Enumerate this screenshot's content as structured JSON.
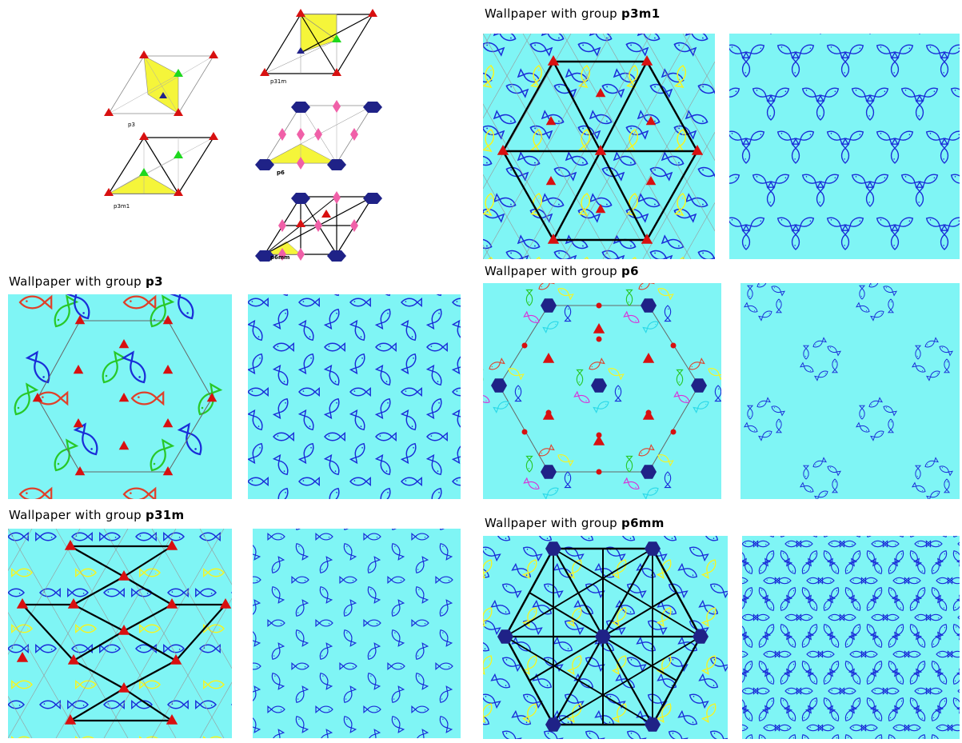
{
  "colors": {
    "background": "#7ff5f5",
    "fish_blue": "#1a2dd8",
    "fish_yellow": "#f5f522",
    "fish_red": "#e0402a",
    "fish_green": "#28c828",
    "triangle_red": "#d81010",
    "triangle_green": "#1ed81e",
    "triangle_navy": "#22228a",
    "hexagon_navy": "#1f2287",
    "diamond_pink": "#f060a8",
    "highlight_yellow": "#f5f53a"
  },
  "cell_diagrams": [
    {
      "id": "p3",
      "label": "p3"
    },
    {
      "id": "p3m1",
      "label": "p3m1"
    },
    {
      "id": "p31m",
      "label": "p31m"
    },
    {
      "id": "p6",
      "label": "p6"
    },
    {
      "id": "p6mm",
      "label": "p6mm"
    }
  ],
  "sections": [
    {
      "id": "p3",
      "title_prefix": "Wallpaper with group ",
      "group": "p3"
    },
    {
      "id": "p31m",
      "title_prefix": "Wallpaper with group ",
      "group": "p31m"
    },
    {
      "id": "p3m1",
      "title_prefix": "Wallpaper with group ",
      "group": "p3m1"
    },
    {
      "id": "p6",
      "title_prefix": "Wallpaper with group ",
      "group": "p6"
    },
    {
      "id": "p6mm",
      "title_prefix": "Wallpaper with group ",
      "group": "p6mm"
    }
  ]
}
